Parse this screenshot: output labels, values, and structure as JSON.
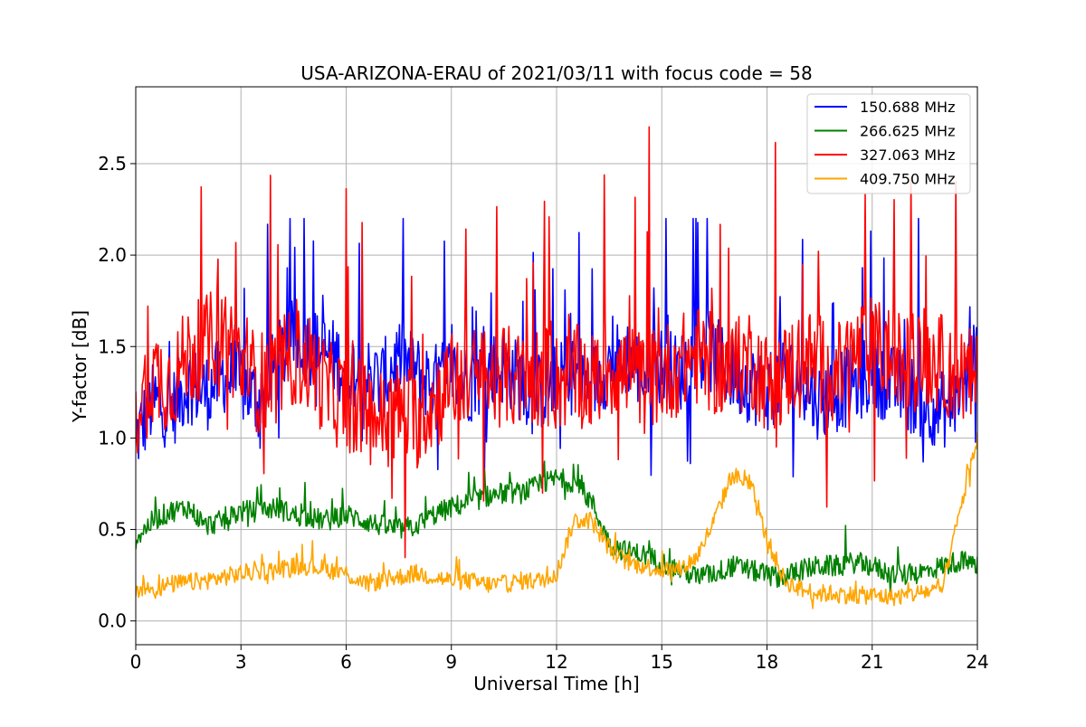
{
  "chart_data": {
    "type": "line",
    "title": "USA-ARIZONA-ERAU of 2021/03/11 with focus code = 58",
    "xlabel": "Universal Time [h]",
    "ylabel": "Y-factor [dB]",
    "xlim": [
      0,
      24
    ],
    "ylim": [
      -0.13,
      2.92
    ],
    "xticks": [
      0,
      3,
      6,
      9,
      12,
      15,
      18,
      21,
      24
    ],
    "yticks": [
      0.0,
      0.5,
      1.0,
      1.5,
      2.0,
      2.5
    ],
    "ytick_labels": [
      "0.0",
      "0.5",
      "1.0",
      "1.5",
      "2.0",
      "2.5"
    ],
    "grid": true,
    "legend_position": "top-right",
    "series": [
      {
        "name": "150.688 MHz",
        "color": "#0000ff",
        "x": [
          0,
          0.5,
          1,
          1.5,
          2,
          2.5,
          3,
          3.5,
          4,
          4.5,
          5,
          5.5,
          6,
          6.5,
          7,
          7.5,
          8,
          8.5,
          9,
          9.5,
          10,
          10.5,
          11,
          11.5,
          12,
          12.5,
          13,
          13.5,
          14,
          14.5,
          15,
          15.5,
          16,
          16.5,
          17,
          17.5,
          18,
          18.5,
          19,
          19.5,
          20,
          20.5,
          21,
          21.5,
          22,
          22.5,
          23,
          23.5,
          24
        ],
        "y": [
          1.0,
          1.2,
          1.15,
          1.3,
          1.25,
          1.35,
          1.3,
          1.2,
          1.4,
          1.55,
          1.5,
          1.45,
          1.4,
          1.35,
          1.3,
          1.45,
          1.35,
          1.3,
          1.35,
          1.3,
          1.35,
          1.4,
          1.3,
          1.25,
          1.3,
          1.35,
          1.3,
          1.4,
          1.45,
          1.35,
          1.4,
          1.35,
          1.5,
          1.45,
          1.35,
          1.3,
          1.25,
          1.35,
          1.3,
          1.2,
          1.25,
          1.3,
          1.35,
          1.3,
          1.25,
          1.2,
          1.15,
          1.25,
          1.45
        ]
      },
      {
        "name": "266.625 MHz",
        "color": "#008000",
        "x": [
          0,
          0.5,
          1,
          1.5,
          2,
          2.5,
          3,
          3.5,
          4,
          4.5,
          5,
          5.5,
          6,
          6.5,
          7,
          7.5,
          8,
          8.5,
          9,
          9.5,
          10,
          10.5,
          11,
          11.5,
          12,
          12.5,
          13,
          13.5,
          14,
          14.5,
          15,
          15.5,
          16,
          16.5,
          17,
          17.5,
          18,
          18.5,
          19,
          19.5,
          20,
          20.5,
          21,
          21.5,
          22,
          22.5,
          23,
          23.5,
          24
        ],
        "y": [
          0.45,
          0.55,
          0.6,
          0.62,
          0.52,
          0.55,
          0.6,
          0.6,
          0.62,
          0.58,
          0.56,
          0.55,
          0.58,
          0.55,
          0.52,
          0.5,
          0.52,
          0.58,
          0.62,
          0.65,
          0.68,
          0.7,
          0.7,
          0.74,
          0.78,
          0.76,
          0.65,
          0.42,
          0.38,
          0.36,
          0.32,
          0.28,
          0.24,
          0.26,
          0.3,
          0.28,
          0.25,
          0.24,
          0.28,
          0.3,
          0.3,
          0.32,
          0.3,
          0.26,
          0.25,
          0.27,
          0.3,
          0.33,
          0.3
        ]
      },
      {
        "name": "327.063 MHz",
        "color": "#ff0000",
        "x": [
          0,
          0.5,
          1,
          1.5,
          2,
          2.5,
          3,
          3.5,
          4,
          4.5,
          5,
          5.5,
          6,
          6.5,
          7,
          7.5,
          8,
          8.5,
          9,
          9.5,
          10,
          10.5,
          11,
          11.5,
          12,
          12.5,
          13,
          13.5,
          14,
          14.5,
          15,
          15.5,
          16,
          16.5,
          17,
          17.5,
          18,
          18.5,
          19,
          19.5,
          20,
          20.5,
          21,
          21.5,
          22,
          22.5,
          23,
          23.5,
          24
        ],
        "y": [
          1.15,
          1.35,
          1.3,
          1.45,
          1.5,
          1.6,
          1.4,
          1.3,
          1.35,
          1.45,
          1.4,
          1.25,
          1.2,
          1.15,
          1.1,
          1.15,
          1.1,
          1.2,
          1.3,
          1.35,
          1.3,
          1.35,
          1.3,
          1.35,
          1.3,
          1.35,
          1.3,
          1.4,
          1.35,
          1.3,
          1.35,
          1.4,
          1.45,
          1.4,
          1.35,
          1.45,
          1.3,
          1.35,
          1.45,
          1.4,
          1.35,
          1.45,
          1.5,
          1.45,
          1.4,
          1.45,
          1.4,
          1.35,
          1.3
        ]
      },
      {
        "name": "409.750 MHz",
        "color": "#ffa500",
        "x": [
          0,
          0.5,
          1,
          1.5,
          2,
          2.5,
          3,
          3.5,
          4,
          4.5,
          5,
          5.5,
          6,
          6.5,
          7,
          7.5,
          8,
          8.5,
          9,
          9.5,
          10,
          10.5,
          11,
          11.5,
          12,
          12.5,
          13,
          13.5,
          14,
          14.5,
          15,
          15.5,
          16,
          16.5,
          17,
          17.5,
          18,
          18.5,
          19,
          19.5,
          20,
          20.5,
          21,
          21.5,
          22,
          22.5,
          23,
          23.5,
          24
        ],
        "y": [
          0.18,
          0.17,
          0.2,
          0.21,
          0.22,
          0.24,
          0.26,
          0.27,
          0.28,
          0.3,
          0.3,
          0.28,
          0.26,
          0.2,
          0.22,
          0.24,
          0.26,
          0.24,
          0.22,
          0.22,
          0.2,
          0.2,
          0.22,
          0.22,
          0.26,
          0.55,
          0.55,
          0.4,
          0.32,
          0.3,
          0.28,
          0.28,
          0.35,
          0.55,
          0.8,
          0.75,
          0.45,
          0.22,
          0.17,
          0.15,
          0.15,
          0.14,
          0.14,
          0.13,
          0.14,
          0.16,
          0.17,
          0.6,
          1.0
        ]
      }
    ]
  }
}
